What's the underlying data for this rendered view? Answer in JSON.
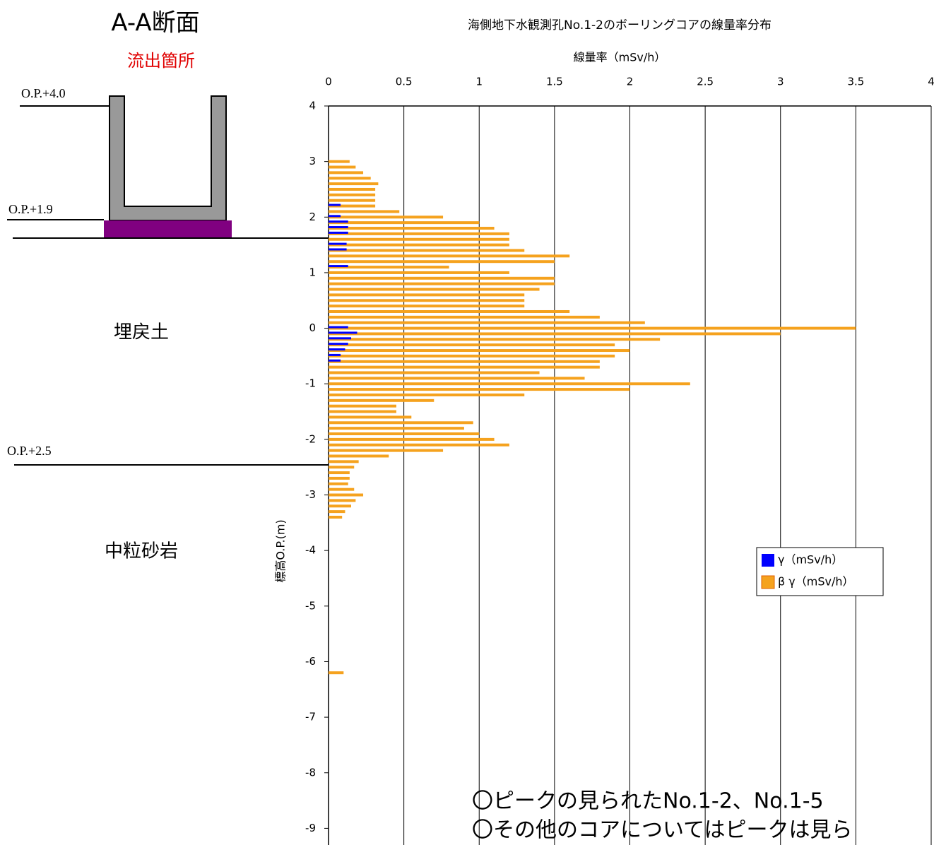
{
  "chart_data": {
    "type": "hbar",
    "title": "海側地下水観測孔No.1-2のボーリングコアの線量率分布",
    "x_label": "線量率（mSv/h）",
    "y_label": "標高O.P.(m)",
    "xlim": [
      0,
      4
    ],
    "xticks": [
      0,
      0.5,
      1,
      1.5,
      2,
      2.5,
      3,
      3.5,
      4
    ],
    "ylim": [
      -9.3,
      4
    ],
    "yticks": [
      4,
      3,
      2,
      1,
      0,
      -1,
      -2,
      -3,
      -4,
      -5,
      -6,
      -7,
      -8,
      -9
    ],
    "grid": true,
    "legend": "right",
    "depths": [
      3.0,
      2.9,
      2.8,
      2.7,
      2.6,
      2.5,
      2.4,
      2.3,
      2.2,
      2.1,
      2.0,
      1.9,
      1.8,
      1.7,
      1.6,
      1.5,
      1.4,
      1.3,
      1.2,
      1.1,
      1.0,
      0.9,
      0.8,
      0.7,
      0.6,
      0.5,
      0.4,
      0.3,
      0.2,
      0.1,
      0.0,
      -0.1,
      -0.2,
      -0.3,
      -0.4,
      -0.5,
      -0.6,
      -0.7,
      -0.8,
      -0.9,
      -1.0,
      -1.1,
      -1.2,
      -1.3,
      -1.4,
      -1.5,
      -1.6,
      -1.7,
      -1.8,
      -1.9,
      -2.0,
      -2.1,
      -2.2,
      -2.3,
      -2.4,
      -2.5,
      -2.6,
      -2.7,
      -2.8,
      -2.9,
      -3.0,
      -3.1,
      -3.2,
      -3.3,
      -3.4,
      -6.2
    ],
    "series": [
      {
        "name": "β γ（mSv/h）",
        "color": "#f5a21e",
        "values": [
          0.14,
          0.18,
          0.23,
          0.28,
          0.33,
          0.31,
          0.31,
          0.31,
          0.31,
          0.47,
          0.76,
          1.0,
          1.1,
          1.2,
          1.2,
          1.2,
          1.3,
          1.6,
          1.5,
          0.8,
          1.2,
          1.5,
          1.5,
          1.4,
          1.3,
          1.3,
          1.3,
          1.6,
          1.8,
          2.1,
          3.5,
          3.0,
          2.2,
          1.9,
          2.0,
          1.9,
          1.8,
          1.8,
          1.4,
          1.7,
          2.4,
          2.0,
          1.3,
          0.7,
          0.45,
          0.45,
          0.55,
          0.96,
          0.9,
          1.0,
          1.1,
          1.2,
          0.76,
          0.4,
          0.2,
          0.17,
          0.14,
          0.14,
          0.13,
          0.17,
          0.23,
          0.18,
          0.15,
          0.11,
          0.09,
          0.1
        ]
      },
      {
        "name": "γ（mSv/h）",
        "color": "#0000ff",
        "values": [
          null,
          null,
          null,
          null,
          null,
          null,
          null,
          null,
          0.08,
          null,
          0.08,
          0.13,
          0.13,
          0.13,
          null,
          0.12,
          0.12,
          null,
          null,
          0.13,
          null,
          null,
          null,
          null,
          null,
          null,
          null,
          null,
          null,
          null,
          0.13,
          0.19,
          0.15,
          0.13,
          0.11,
          0.08,
          0.08,
          null,
          null,
          null,
          null,
          null,
          null,
          null,
          null,
          null,
          null,
          null,
          null,
          null,
          null,
          null,
          null,
          null,
          null,
          null,
          null,
          null,
          null,
          null,
          null,
          null,
          null,
          null,
          null,
          null
        ]
      }
    ]
  },
  "diagram": {
    "title": "A-A断面",
    "outflow": "流出箇所",
    "levels": [
      "O.P.+4.0",
      "O.P.+1.9",
      "O.P.+2.5"
    ],
    "layers": [
      "埋戻土",
      "中粒砂岩"
    ],
    "notes": [
      "〇ピークの見られたNo.1-2、No.1-5",
      "〇その他のコアについてはピークは見ら"
    ]
  }
}
